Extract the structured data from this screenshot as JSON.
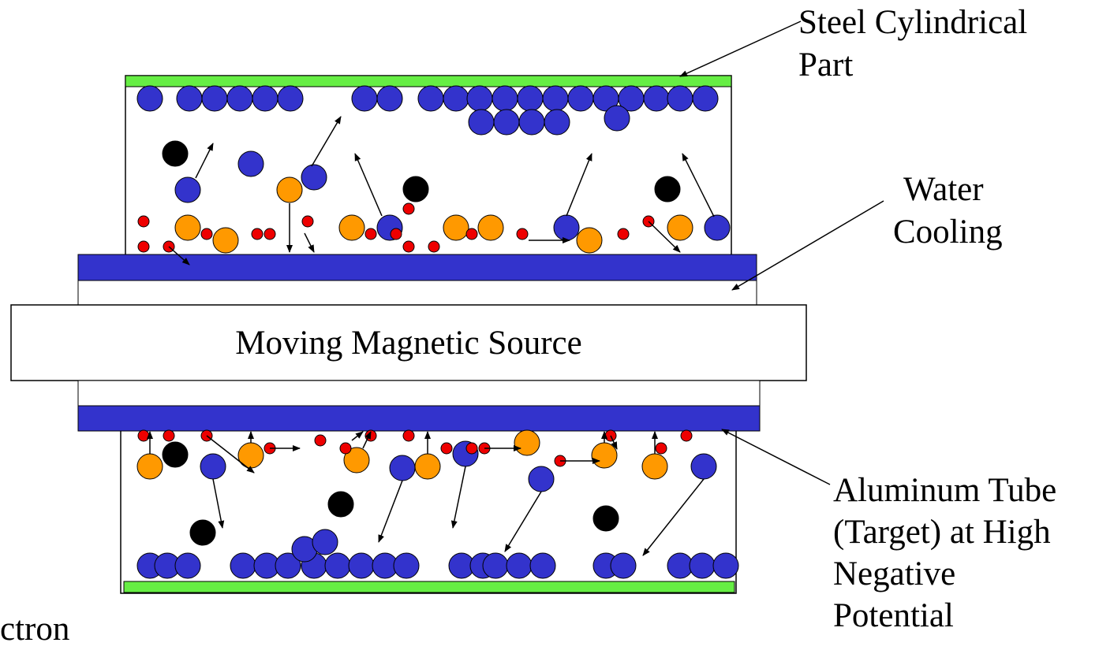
{
  "labels": {
    "steel": [
      "Steel Cylindrical",
      "Part"
    ],
    "water": [
      "Water",
      "Cooling"
    ],
    "aluminum": [
      "Aluminum Tube",
      "(Target) at High",
      "Negative",
      "Potential"
    ],
    "source": "Moving Magnetic Source",
    "legend_partial": "ctron"
  },
  "colors": {
    "steel": "#66ee44",
    "aluminum": "#3333cc",
    "deposited_atom": "#3333cc",
    "ion": "#ff9900",
    "electron": "#ee0000",
    "neutral": "#000000"
  }
}
